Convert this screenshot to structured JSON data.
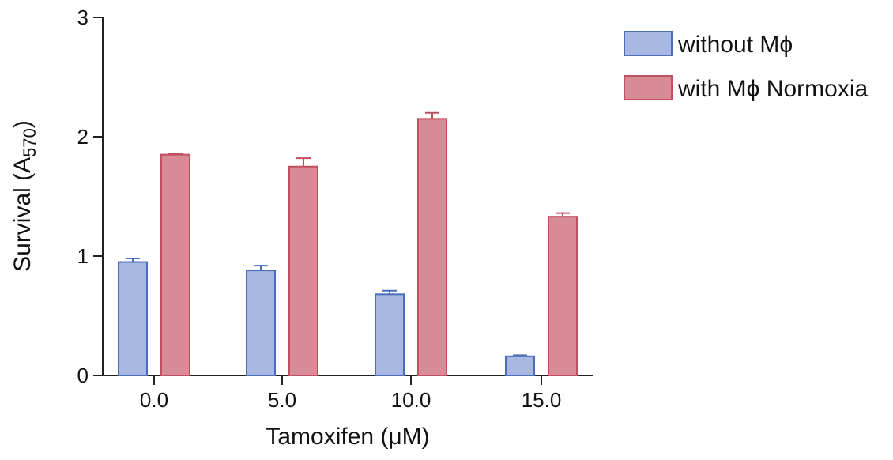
{
  "chart_data": {
    "type": "bar",
    "categories": [
      "0.0",
      "5.0",
      "10.0",
      "15.0"
    ],
    "series": [
      {
        "name": "without Mϕ",
        "values": [
          0.95,
          0.88,
          0.68,
          0.16
        ],
        "errors": [
          0.03,
          0.04,
          0.03,
          0.01
        ],
        "fill": "#a9b7e3",
        "stroke": "#4a6fb5"
      },
      {
        "name": "with Mϕ Normoxia",
        "values": [
          1.85,
          1.75,
          2.15,
          1.33
        ],
        "errors": [
          0.01,
          0.07,
          0.05,
          0.03
        ],
        "fill": "#d98a97",
        "stroke": "#c0505f"
      }
    ],
    "xlabel": "Tamoxifen (μM)",
    "ylabel_main": "Survival (A",
    "ylabel_sub": "570",
    "ylabel_close": ")",
    "ylim": [
      0,
      3
    ],
    "yticks": [
      0,
      1,
      2,
      3
    ],
    "grid": false,
    "legend_position": "top-right"
  }
}
